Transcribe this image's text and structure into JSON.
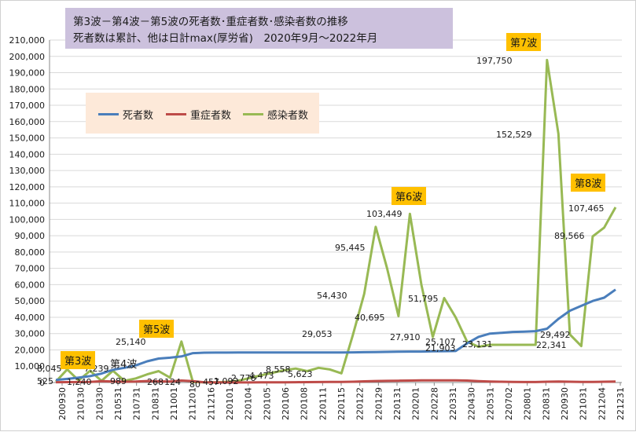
{
  "title": {
    "line1": "第3波－第4波－第5波の死者数･重症者数･感染者数の推移",
    "line2": "死者数は累計、他は日計max(厚労省)　2020年9月～2022年月"
  },
  "legend": [
    {
      "name": "死者数",
      "color": "#4a7ebb"
    },
    {
      "name": "重症者数",
      "color": "#be4b48"
    },
    {
      "name": "感染者数",
      "color": "#98b954"
    }
  ],
  "wave_labels": [
    "第3波",
    "第4波",
    "第5波",
    "第6波",
    "第7波",
    "第8波"
  ],
  "chart_data": {
    "type": "line",
    "title": "第3波－第4波－第5波の死者数･重症者数･感染者数の推移",
    "ylim": [
      0,
      210000
    ],
    "y_ticks": [
      "0",
      "10,000",
      "20,000",
      "30,000",
      "40,000",
      "50,000",
      "60,000",
      "70,000",
      "80,000",
      "90,000",
      "100,000",
      "110,000",
      "120,000",
      "130,000",
      "140,000",
      "150,000",
      "160,000",
      "170,000",
      "180,000",
      "190,000",
      "200,000",
      "210,000"
    ],
    "categories": [
      "200930",
      "201031",
      "201130",
      "201231",
      "210130",
      "210228",
      "210330",
      "210430",
      "210531",
      "210630",
      "210731",
      "210831",
      "211001",
      "211130",
      "211201",
      "211231",
      "211216",
      "220101",
      "220103",
      "220104",
      "220105",
      "220106",
      "220107",
      "220108",
      "220109",
      "220111",
      "220112",
      "220115",
      "220120",
      "220122",
      "220125",
      "220129",
      "220130",
      "220131",
      "220201",
      "220202",
      "220228",
      "220331",
      "220430",
      "220531",
      "220630",
      "220702",
      "220731",
      "220801",
      "220831",
      "220930",
      "221031",
      "221130",
      "221204",
      "221231"
    ],
    "x_tick_labels": [
      "200930",
      "210130",
      "210330",
      "210531",
      "210731",
      "210831",
      "211001",
      "211201",
      "211216",
      "220101",
      "220104",
      "220105",
      "220106",
      "220108",
      "220111",
      "220115",
      "220122",
      "220129",
      "220131",
      "220201",
      "220228",
      "220331",
      "220430",
      "220531",
      "220702",
      "220801",
      "220831",
      "220930",
      "221031",
      "221204",
      "221231"
    ],
    "series": [
      {
        "name": "死者数",
        "values": [
          1600,
          2200,
          3000,
          3900,
          5500,
          7800,
          9000,
          10500,
          13000,
          14700,
          15200,
          16000,
          18000,
          18300,
          18350,
          18370,
          18380,
          18390,
          18400,
          18400,
          18400,
          18400,
          18400,
          18400,
          18400,
          18450,
          18500,
          18600,
          18700,
          18800,
          18900,
          19000,
          19000,
          19100,
          19200,
          19300,
          24000,
          28000,
          30000,
          30500,
          31000,
          31200,
          31500,
          33000,
          39000,
          44000,
          47000,
          50000,
          52000,
          57000
        ]
      },
      {
        "name": "重症者数",
        "values": [
          200,
          250,
          300,
          400,
          800,
          600,
          500,
          600,
          900,
          700,
          600,
          1200,
          800,
          100,
          60,
          50,
          50,
          60,
          80,
          100,
          150,
          200,
          250,
          300,
          350,
          400,
          500,
          700,
          900,
          1000,
          1100,
          1200,
          1300,
          1300,
          1300,
          1300,
          1200,
          800,
          600,
          500,
          400,
          300,
          300,
          500,
          600,
          500,
          400,
          400,
          500,
          600
        ]
      },
      {
        "name": "感染者数",
        "values": [
          525,
          8045,
          1240,
          7239,
          989,
          7239,
          989,
          2500,
          5000,
          7000,
          3000,
          25140,
          268,
          124,
          80,
          457,
          1092,
          2776,
          4473,
          6000,
          7500,
          8558,
          7000,
          9000,
          8000,
          5623,
          29053,
          54430,
          95445,
          70000,
          40695,
          103449,
          60000,
          27910,
          51795,
          40000,
          25107,
          21903,
          23131,
          23131,
          23131,
          23131,
          23131,
          197750,
          152529,
          29492,
          22341,
          89566,
          95000,
          107465
        ]
      }
    ],
    "data_labels": [
      "525",
      "8,045",
      "1,240",
      "7,239",
      "989",
      "25,140",
      "268",
      "124",
      "80",
      "457",
      "1,092",
      "2,776",
      "4,473",
      "8,558",
      "5,623",
      "29,053",
      "54,430",
      "95,445",
      "40,695",
      "103,449",
      "27,910",
      "51,795",
      "25,107",
      "21,903",
      "23,131",
      "197,750",
      "152,529",
      "29,492",
      "22,341",
      "89,566",
      "107,465"
    ],
    "grid": true,
    "legend_position": "top-left"
  }
}
